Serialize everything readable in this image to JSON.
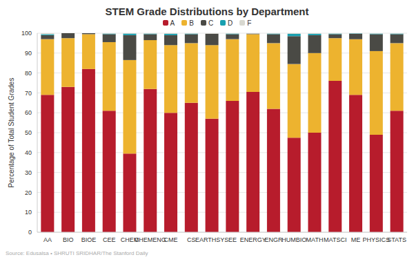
{
  "chart_data": {
    "type": "bar",
    "title": "STEM Grade Distributions by Department",
    "y_label": "Percentage of Total Student Grades",
    "source": "Source: Edusalsa • SHRUTI SRIDHAR/The Stanford Daily",
    "stacked": true,
    "grid": true,
    "legend": "top",
    "categories": [
      "AA",
      "BIO",
      "BIOE",
      "CEE",
      "CHEM",
      "CHEMENG",
      "CME",
      "CS",
      "EARTHSYS",
      "EE",
      "ENERGY",
      "ENGR",
      "HUMBIO",
      "MATH",
      "MATSCI",
      "ME",
      "PHYSICS",
      "STATS"
    ],
    "series": [
      {
        "name": "A",
        "color": "#b71c2c",
        "values": [
          69,
          73,
          82,
          61,
          39.5,
          72,
          60,
          65,
          57,
          66,
          70.5,
          62,
          47.5,
          50,
          76,
          69,
          49,
          61
        ]
      },
      {
        "name": "B",
        "color": "#edb32f",
        "values": [
          28,
          24.5,
          17.5,
          34.5,
          47,
          24.5,
          34,
          30,
          37,
          31,
          29,
          33,
          37,
          40,
          21.5,
          28,
          42,
          34
        ]
      },
      {
        "name": "C",
        "color": "#4a4a45",
        "values": [
          2,
          2.5,
          0.5,
          4,
          12.5,
          3,
          5,
          4.5,
          5.7,
          2.5,
          0.3,
          4.5,
          14,
          9,
          2,
          2.7,
          8.5,
          4.5
        ]
      },
      {
        "name": "D",
        "color": "#19a0b0",
        "values": [
          0.5,
          0,
          0,
          0.3,
          0.8,
          0.3,
          0.7,
          0.3,
          0,
          0.3,
          0,
          0.3,
          1.2,
          0.7,
          0.3,
          0.2,
          0.3,
          0.3
        ]
      },
      {
        "name": "F",
        "color": "#d8d8d0",
        "values": [
          0.5,
          0,
          0,
          0.2,
          0.2,
          0.2,
          0.3,
          0.2,
          0.3,
          0.2,
          0.2,
          0.2,
          0.3,
          0.3,
          0.2,
          0.1,
          0.2,
          0.2
        ]
      }
    ],
    "ylim": [
      0,
      100
    ],
    "yticks": [
      0,
      10,
      20,
      30,
      40,
      50,
      60,
      70,
      80,
      90,
      100
    ]
  }
}
